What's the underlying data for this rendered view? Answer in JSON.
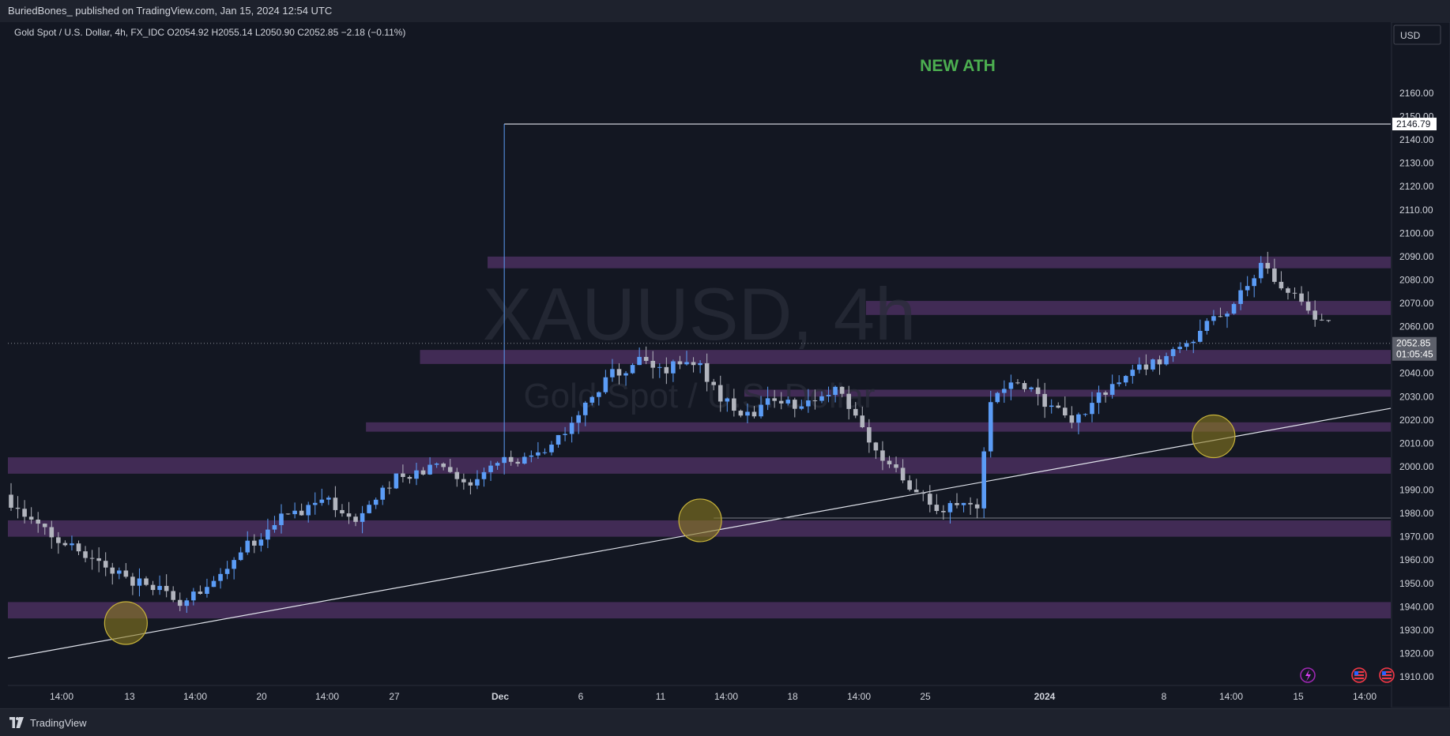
{
  "publisher": {
    "text": "BuriedBones_ published on TradingView.com, Jan 15, 2024 12:54 UTC"
  },
  "legend": {
    "text": "Gold Spot / U.S. Dollar, 4h, FX_IDC  O2054.92  H2055.14  L2050.90  C2052.85  −2.18 (−0.11%)"
  },
  "watermark": {
    "symbol": "XAUUSD, 4h",
    "description": "Gold Spot / U.S. Dollar"
  },
  "annotation": {
    "text": "NEW ATH",
    "color": "#4caf50"
  },
  "price_scale": {
    "currency": "USD",
    "ath_label": "2146.79",
    "last_price_label": "2052.85",
    "countdown_label": "01:05:45"
  },
  "branding": {
    "name": "TradingView"
  },
  "colors": {
    "background": "#131722",
    "up_candle": "#5b9cf6",
    "down_candle": "#b2b5be",
    "zone": "#4a2f5e",
    "text": "#d1d4dc",
    "circle_fill": "#8a7a1f",
    "circle_stroke": "#c7b33a"
  },
  "chart_data": {
    "type": "candlestick",
    "title": "Gold Spot / U.S. Dollar, 4h, FX_IDC",
    "ylim": [
      1905,
      2165
    ],
    "yticks": [
      1910,
      1920,
      1930,
      1940,
      1950,
      1960,
      1970,
      1980,
      1990,
      2000,
      2010,
      2020,
      2030,
      2040,
      2050,
      2060,
      2070,
      2080,
      2090,
      2100,
      2110,
      2120,
      2130,
      2140,
      2150,
      2160
    ],
    "xtick_labels": [
      "14:00",
      "13",
      "14:00",
      "20",
      "14:00",
      "27",
      "Dec",
      "6",
      "11",
      "14:00",
      "18",
      "14:00",
      "25",
      "2024",
      "8",
      "14:00",
      "15",
      "14:00"
    ],
    "bold_xticks": [
      "Dec",
      "2024"
    ],
    "n_bars": 196,
    "path": [
      [
        0,
        1988
      ],
      [
        4,
        1975
      ],
      [
        10,
        1965
      ],
      [
        16,
        1955
      ],
      [
        22,
        1948
      ],
      [
        26,
        1942
      ],
      [
        28,
        1945
      ],
      [
        32,
        1955
      ],
      [
        34,
        1962
      ],
      [
        38,
        1970
      ],
      [
        42,
        1980
      ],
      [
        48,
        1985
      ],
      [
        52,
        1977
      ],
      [
        58,
        1995
      ],
      [
        64,
        2000
      ],
      [
        68,
        1992
      ],
      [
        72,
        2000
      ],
      [
        78,
        2005
      ],
      [
        82,
        2012
      ],
      [
        86,
        2025
      ],
      [
        90,
        2040
      ],
      [
        94,
        2045
      ],
      [
        98,
        2042
      ],
      [
        102,
        2046
      ],
      [
        106,
        2030
      ],
      [
        110,
        2022
      ],
      [
        114,
        2030
      ],
      [
        118,
        2026
      ],
      [
        124,
        2033
      ],
      [
        126,
        2020
      ],
      [
        130,
        2005
      ],
      [
        134,
        1990
      ],
      [
        138,
        1982
      ],
      [
        142,
        1983
      ],
      [
        144,
        1980
      ],
      [
        146,
        2030
      ],
      [
        150,
        2035
      ],
      [
        154,
        2028
      ],
      [
        158,
        2020
      ],
      [
        162,
        2030
      ],
      [
        166,
        2040
      ],
      [
        170,
        2045
      ],
      [
        174,
        2050
      ],
      [
        178,
        2060
      ],
      [
        182,
        2070
      ],
      [
        186,
        2085
      ],
      [
        190,
        2075
      ],
      [
        194,
        2062
      ]
    ],
    "ath_spike": {
      "bar": 73,
      "high": 2146.79
    },
    "zones": [
      {
        "from": 2085,
        "to": 2090,
        "x_start_bar": 71
      },
      {
        "from": 2065,
        "to": 2071,
        "x_start_bar": 127
      },
      {
        "from": 2044,
        "to": 2050,
        "x_start_bar": 61
      },
      {
        "from": 2030,
        "to": 2033,
        "x_start_bar": 109
      },
      {
        "from": 2015,
        "to": 2019,
        "x_start_bar": 53
      },
      {
        "from": 1997,
        "to": 2004,
        "x_start_bar": 0
      },
      {
        "from": 1970,
        "to": 1977,
        "x_start_bar": 0
      },
      {
        "from": 1935,
        "to": 1942,
        "x_start_bar": 0
      }
    ],
    "trendline": {
      "x1_bar": 0,
      "y1": 1918,
      "x2_bar": 196,
      "y2": 2025
    },
    "ath_line": {
      "start_bar": 73,
      "price": 2146.79
    },
    "support_line": {
      "price": 1978,
      "start_bar": 104
    },
    "touch_points": [
      {
        "bar": 17,
        "price": 1933
      },
      {
        "bar": 102,
        "price": 1977
      },
      {
        "bar": 178,
        "price": 2013
      }
    ],
    "last_price": 2052.85
  }
}
